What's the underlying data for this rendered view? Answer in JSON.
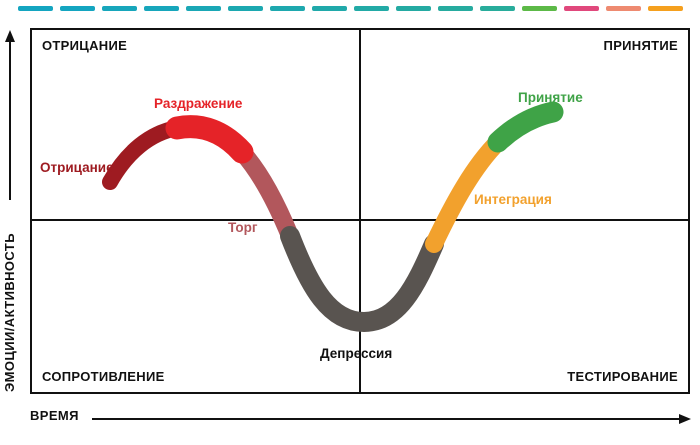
{
  "top_strip": {
    "colors": [
      "#14A5C0",
      "#14A5C0",
      "#17A6BB",
      "#17A6BB",
      "#1AA7B5",
      "#1CA8B0",
      "#1EA8AE",
      "#20A9AA",
      "#22AAA6",
      "#24AAA2",
      "#26AB9F",
      "#28AC9B",
      "#5CB947",
      "#E0487C",
      "#EE8A70",
      "#F5A01E"
    ]
  },
  "chart": {
    "quadrants": {
      "top_left": "ОТРИЦАНИЕ",
      "top_right": "ПРИНЯТИЕ",
      "bottom_left": "СОПРОТИВЛЕНИЕ",
      "bottom_right": "ТЕСТИРОВАНИЕ"
    },
    "axes": {
      "y_label": "ЭМОЦИИ/АКТИВНОСТЬ",
      "x_label": "ВРЕМЯ"
    },
    "stages": [
      {
        "id": "denial",
        "label": "Отрицание",
        "color": "#9E1B21"
      },
      {
        "id": "anger",
        "label": "Раздражение",
        "color": "#E52328"
      },
      {
        "id": "bargaining",
        "label": "Торг",
        "color": "#B2575C"
      },
      {
        "id": "depression",
        "label": "Депрессия",
        "color": "#595450",
        "label_color": "#111111"
      },
      {
        "id": "integration",
        "label": "Интеграция",
        "color": "#F2A12D"
      },
      {
        "id": "acceptance",
        "label": "Принятие",
        "color": "#3FA347"
      }
    ]
  }
}
